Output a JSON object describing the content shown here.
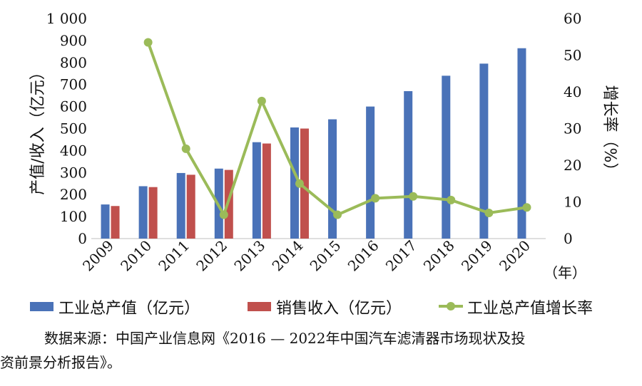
{
  "chart_data": {
    "type": "bar+line",
    "categories": [
      "2009",
      "2010",
      "2011",
      "2012",
      "2013",
      "2014",
      "2015",
      "2016",
      "2017",
      "2018",
      "2019",
      "2020"
    ],
    "x_unit": "（年）",
    "series": [
      {
        "name": "工业总产值（亿元）",
        "type": "bar",
        "axis": "left",
        "color": "#4a72b8",
        "values": [
          155,
          238,
          298,
          318,
          438,
          505,
          542,
          600,
          670,
          740,
          795,
          865
        ]
      },
      {
        "name": "销售收入（亿元）",
        "type": "bar",
        "axis": "left",
        "color": "#c0504d",
        "values": [
          148,
          234,
          290,
          312,
          432,
          500,
          null,
          null,
          null,
          null,
          null,
          null
        ]
      },
      {
        "name": "工业总产值增长率",
        "type": "line",
        "axis": "right",
        "color": "#9bbb59",
        "values": [
          null,
          53.5,
          24.5,
          6.5,
          37.5,
          15.0,
          6.5,
          11.0,
          11.5,
          10.5,
          7.0,
          8.5
        ]
      }
    ],
    "y_left": {
      "label": "产值/收入（亿元）",
      "range": [
        0,
        1000
      ],
      "ticks": [
        0,
        100,
        200,
        300,
        400,
        500,
        600,
        700,
        800,
        900,
        1000
      ],
      "tick_labels": [
        "0",
        "100",
        "200",
        "300",
        "400",
        "500",
        "600",
        "700",
        "800",
        "900",
        "1 000"
      ]
    },
    "y_right": {
      "label": "增长率（%）",
      "range": [
        0,
        60
      ],
      "ticks": [
        0,
        10,
        20,
        30,
        40,
        50,
        60
      ],
      "tick_labels": [
        "0",
        "10",
        "20",
        "30",
        "40",
        "50",
        "60"
      ]
    },
    "grid": false,
    "legend_position": "bottom"
  },
  "source": {
    "line1": "数据来源：中国产业信息网《2016 — 2022年中国汽车滤清器市场现状及投",
    "line2": "资前景分析报告》。"
  }
}
